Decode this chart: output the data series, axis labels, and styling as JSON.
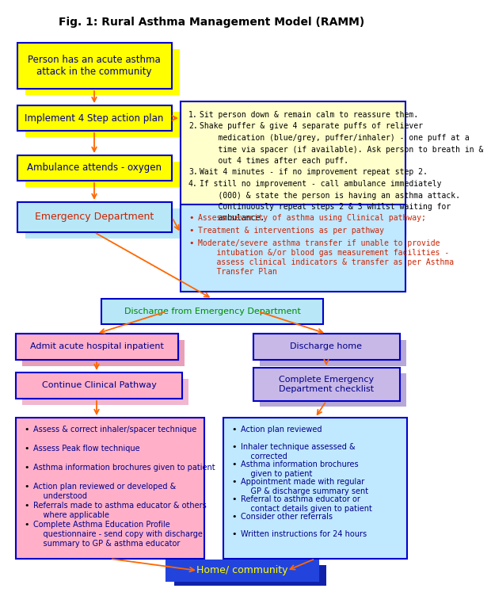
{
  "title": "Fig. 1: Rural Asthma Management Model (RAMM)",
  "colors": {
    "yellow": "#FFFF00",
    "yellow_shadow": "#CCCC00",
    "cyan_light": "#B8E8F8",
    "cyan_shadow": "#90C8D8",
    "yellow_note": "#FFFFCC",
    "blue_note": "#C0E8FF",
    "pink": "#FFB0C8",
    "pink_shadow": "#E090A8",
    "lavender": "#C8B8E8",
    "lavender_shadow": "#A898C8",
    "blue_home": "#2244DD",
    "blue_home2": "#1122AA",
    "border": "#0000CC",
    "arrow": "#FF6600",
    "text_dark_blue": "#000088",
    "text_red": "#CC2200",
    "text_green": "#008800",
    "text_yellow": "#FFFF00",
    "black": "#000000"
  },
  "note1_items": [
    [
      "1.",
      "Sit person down & remain calm to reassure them."
    ],
    [
      "2.",
      "Shake puffer & give 4 separate puffs of reliever"
    ],
    [
      "",
      "    medication (blue/grey, puffer/inhaler) - one puff at a"
    ],
    [
      "",
      "    time via spacer (if available). Ask person to breath in &"
    ],
    [
      "",
      "    out 4 times after each puff."
    ],
    [
      "3.",
      "Wait 4 minutes - if no improvement repeat step 2."
    ],
    [
      "4.",
      "If still no improvement - call ambulance immediately"
    ],
    [
      "",
      "    (000) & state the person is having an asthma attack."
    ],
    [
      "",
      "    Continuously repeat steps 2 & 3 whilst waiting for"
    ],
    [
      "",
      "    ambulance."
    ]
  ],
  "note2_items": [
    "Assess severity of asthma using Clinical pathway;",
    "Treatment & interventions as per pathway",
    "Moderate/severe asthma transfer if unable to provide\n    intubation &/or blood gas measurement facilities -\n    assess clinical indicators & transfer as per Asthma\n    Transfer Plan"
  ],
  "left_bullets": [
    "Assess & correct inhaler/spacer technique",
    "Assess Peak flow technique",
    "Asthma information brochures given to patient",
    "Action plan reviewed or developed &\n    understood",
    "Referrals made to asthma educator & others\n    where applicable",
    "Complete Asthma Education Profile\n    questionnaire - send copy with discharge\n    summary to GP & asthma educator"
  ],
  "right_bullets": [
    "Action plan reviewed",
    "Inhaler technique assessed &\n    corrected",
    "Asthma information brochures\n    given to patient",
    "Appointment made with regular\n    GP & discharge summary sent",
    "Referral to asthma educator or\n    contact details given to patient",
    "Consider other referrals",
    "Written instructions for 24 hours"
  ]
}
